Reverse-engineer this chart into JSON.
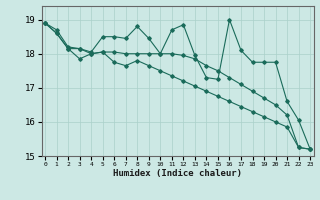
{
  "xlabel": "Humidex (Indice chaleur)",
  "background_color": "#cce8e4",
  "grid_color": "#aad0ca",
  "line_color": "#1a6b5a",
  "ylim": [
    15,
    19.4
  ],
  "xlim": [
    -0.3,
    23.3
  ],
  "yticks": [
    15,
    16,
    17,
    18,
    19
  ],
  "xticks": [
    0,
    1,
    2,
    3,
    4,
    5,
    6,
    7,
    8,
    9,
    10,
    11,
    12,
    13,
    14,
    15,
    16,
    17,
    18,
    19,
    20,
    21,
    22,
    23
  ],
  "line1_x": [
    0,
    1,
    2,
    3,
    4,
    5,
    6,
    7,
    8,
    9,
    10,
    11,
    12,
    13,
    14,
    15,
    16,
    17,
    18,
    19,
    20,
    21,
    22,
    23
  ],
  "line1_y": [
    18.9,
    18.7,
    18.2,
    18.15,
    18.05,
    18.5,
    18.5,
    18.45,
    18.8,
    18.45,
    18.0,
    18.7,
    18.85,
    17.95,
    17.3,
    17.25,
    19.0,
    18.1,
    17.75,
    17.75,
    17.75,
    16.6,
    16.05,
    15.2
  ],
  "line2_x": [
    0,
    1,
    2,
    3,
    4,
    5,
    6,
    7,
    8,
    9,
    10,
    11,
    12,
    13,
    14,
    15,
    16,
    17,
    18,
    19,
    20,
    21,
    22,
    23
  ],
  "line2_y": [
    18.9,
    18.6,
    18.15,
    18.15,
    18.0,
    18.05,
    18.05,
    18.0,
    18.0,
    18.0,
    18.0,
    18.0,
    17.95,
    17.85,
    17.65,
    17.5,
    17.3,
    17.1,
    16.9,
    16.7,
    16.5,
    16.2,
    15.25,
    15.2
  ],
  "line3_x": [
    0,
    1,
    2,
    3,
    4,
    5,
    6,
    7,
    8,
    9,
    10,
    11,
    12,
    13,
    14,
    15,
    16,
    17,
    18,
    19,
    20,
    21,
    22,
    23
  ],
  "line3_y": [
    18.9,
    18.6,
    18.15,
    17.85,
    18.0,
    18.05,
    17.75,
    17.65,
    17.8,
    17.65,
    17.5,
    17.35,
    17.2,
    17.05,
    16.9,
    16.75,
    16.6,
    16.45,
    16.3,
    16.15,
    16.0,
    15.85,
    15.25,
    15.2
  ],
  "xtick_fontsize": 4.5,
  "ytick_fontsize": 6.5,
  "xlabel_fontsize": 6.5
}
